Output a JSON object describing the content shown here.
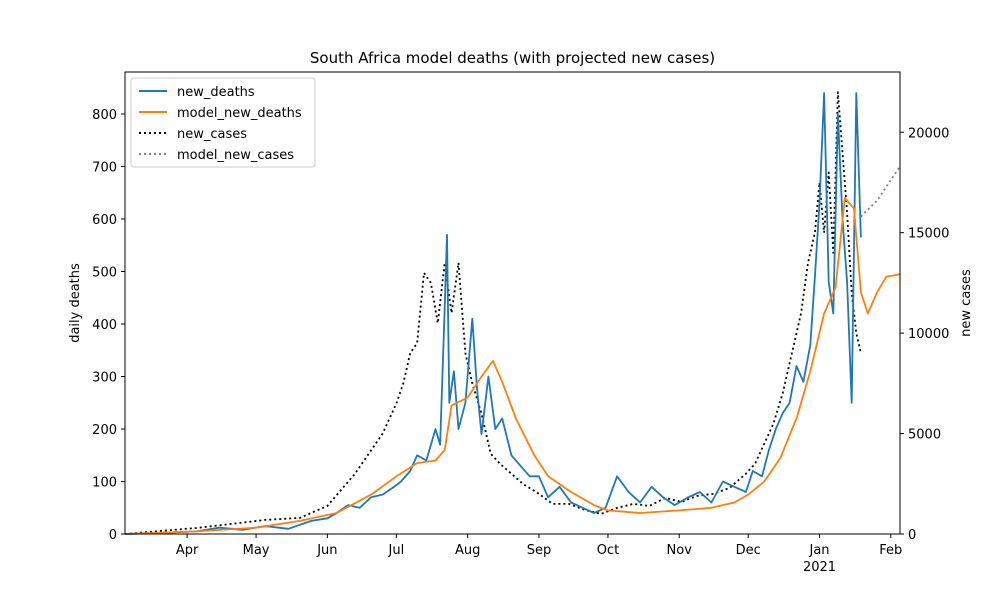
{
  "chart_data": {
    "type": "line",
    "title": "South Africa model deaths (with projected new cases)",
    "ylabel": "daily deaths",
    "y2label": "new cases",
    "xlim": [
      "2020-03-05",
      "2021-02-05"
    ],
    "ylim": [
      0,
      880
    ],
    "y2lim": [
      0,
      23000
    ],
    "x_ticks": [
      {
        "date": "2020-04-01",
        "label": "Apr"
      },
      {
        "date": "2020-05-01",
        "label": "May"
      },
      {
        "date": "2020-06-01",
        "label": "Jun"
      },
      {
        "date": "2020-07-01",
        "label": "Jul"
      },
      {
        "date": "2020-08-01",
        "label": "Aug"
      },
      {
        "date": "2020-09-01",
        "label": "Sep"
      },
      {
        "date": "2020-10-01",
        "label": "Oct"
      },
      {
        "date": "2020-11-01",
        "label": "Nov"
      },
      {
        "date": "2020-12-01",
        "label": "Dec"
      },
      {
        "date": "2021-01-01",
        "label": "Jan",
        "sublabel": "2021"
      },
      {
        "date": "2021-02-01",
        "label": "Feb"
      }
    ],
    "y_ticks": [
      0,
      100,
      200,
      300,
      400,
      500,
      600,
      700,
      800
    ],
    "y2_ticks": [
      0,
      5000,
      10000,
      15000,
      20000
    ],
    "legend_position": "upper-left",
    "series": [
      {
        "name": "new_deaths",
        "axis": "left",
        "color": "#1f77b4",
        "style": "solid",
        "x": [
          "2020-03-05",
          "2020-03-20",
          "2020-04-05",
          "2020-04-15",
          "2020-04-25",
          "2020-05-05",
          "2020-05-15",
          "2020-05-25",
          "2020-06-01",
          "2020-06-05",
          "2020-06-10",
          "2020-06-15",
          "2020-06-20",
          "2020-06-25",
          "2020-06-30",
          "2020-07-03",
          "2020-07-07",
          "2020-07-10",
          "2020-07-14",
          "2020-07-18",
          "2020-07-20",
          "2020-07-22",
          "2020-07-23",
          "2020-07-24",
          "2020-07-26",
          "2020-07-28",
          "2020-07-31",
          "2020-08-03",
          "2020-08-05",
          "2020-08-07",
          "2020-08-10",
          "2020-08-13",
          "2020-08-16",
          "2020-08-20",
          "2020-08-24",
          "2020-08-28",
          "2020-09-01",
          "2020-09-05",
          "2020-09-10",
          "2020-09-15",
          "2020-09-20",
          "2020-09-25",
          "2020-09-30",
          "2020-10-05",
          "2020-10-10",
          "2020-10-15",
          "2020-10-20",
          "2020-10-25",
          "2020-10-30",
          "2020-11-05",
          "2020-11-10",
          "2020-11-15",
          "2020-11-20",
          "2020-11-25",
          "2020-11-30",
          "2020-12-03",
          "2020-12-07",
          "2020-12-10",
          "2020-12-13",
          "2020-12-16",
          "2020-12-19",
          "2020-12-22",
          "2020-12-25",
          "2020-12-28",
          "2020-12-30",
          "2021-01-01",
          "2021-01-03",
          "2021-01-05",
          "2021-01-07",
          "2021-01-09",
          "2021-01-11",
          "2021-01-13",
          "2021-01-15",
          "2021-01-17",
          "2021-01-19"
        ],
        "y": [
          0,
          2,
          5,
          12,
          8,
          15,
          10,
          25,
          30,
          40,
          55,
          50,
          70,
          75,
          90,
          100,
          120,
          150,
          140,
          200,
          170,
          430,
          570,
          250,
          310,
          200,
          250,
          410,
          280,
          190,
          300,
          200,
          220,
          150,
          130,
          110,
          110,
          70,
          90,
          60,
          50,
          40,
          50,
          110,
          80,
          60,
          90,
          70,
          55,
          70,
          80,
          60,
          100,
          90,
          80,
          120,
          110,
          160,
          200,
          230,
          250,
          320,
          290,
          360,
          490,
          630,
          840,
          480,
          420,
          800,
          600,
          480,
          250,
          840,
          565
        ]
      },
      {
        "name": "model_new_deaths",
        "axis": "left",
        "color": "#ff7f0e",
        "style": "solid",
        "x": [
          "2020-03-05",
          "2020-04-05",
          "2020-05-01",
          "2020-05-20",
          "2020-06-05",
          "2020-06-20",
          "2020-07-01",
          "2020-07-10",
          "2020-07-18",
          "2020-07-22",
          "2020-07-25",
          "2020-08-01",
          "2020-08-07",
          "2020-08-12",
          "2020-08-16",
          "2020-08-22",
          "2020-08-30",
          "2020-09-05",
          "2020-09-15",
          "2020-09-25",
          "2020-10-01",
          "2020-10-15",
          "2020-11-01",
          "2020-11-15",
          "2020-11-25",
          "2020-12-01",
          "2020-12-08",
          "2020-12-15",
          "2020-12-22",
          "2020-12-28",
          "2021-01-03",
          "2021-01-08",
          "2021-01-12",
          "2021-01-16",
          "2021-01-19",
          "2021-01-22",
          "2021-01-26",
          "2021-01-30",
          "2021-02-05"
        ],
        "y": [
          0,
          5,
          12,
          25,
          40,
          75,
          110,
          135,
          140,
          160,
          245,
          260,
          300,
          330,
          290,
          220,
          150,
          110,
          80,
          55,
          45,
          40,
          45,
          50,
          60,
          75,
          100,
          145,
          220,
          310,
          420,
          470,
          640,
          620,
          460,
          420,
          460,
          490,
          495
        ]
      },
      {
        "name": "new_cases",
        "axis": "right",
        "color": "#000000",
        "style": "dotted",
        "x": [
          "2020-03-05",
          "2020-03-20",
          "2020-04-05",
          "2020-04-20",
          "2020-05-05",
          "2020-05-20",
          "2020-06-01",
          "2020-06-07",
          "2020-06-13",
          "2020-06-19",
          "2020-06-25",
          "2020-07-01",
          "2020-07-04",
          "2020-07-07",
          "2020-07-10",
          "2020-07-13",
          "2020-07-16",
          "2020-07-19",
          "2020-07-22",
          "2020-07-25",
          "2020-07-28",
          "2020-07-31",
          "2020-08-03",
          "2020-08-07",
          "2020-08-11",
          "2020-08-15",
          "2020-08-20",
          "2020-08-25",
          "2020-09-01",
          "2020-09-07",
          "2020-09-14",
          "2020-09-21",
          "2020-09-28",
          "2020-10-05",
          "2020-10-12",
          "2020-10-19",
          "2020-10-26",
          "2020-11-02",
          "2020-11-09",
          "2020-11-16",
          "2020-11-23",
          "2020-11-30",
          "2020-12-04",
          "2020-12-08",
          "2020-12-12",
          "2020-12-16",
          "2020-12-20",
          "2020-12-24",
          "2020-12-27",
          "2020-12-30",
          "2021-01-01",
          "2021-01-03",
          "2021-01-05",
          "2021-01-07",
          "2021-01-09",
          "2021-01-11",
          "2021-01-13",
          "2021-01-15",
          "2021-01-17",
          "2021-01-19"
        ],
        "y": [
          0,
          150,
          300,
          500,
          700,
          800,
          1400,
          2200,
          3000,
          4000,
          5000,
          6500,
          7500,
          9000,
          9500,
          13000,
          12500,
          10500,
          13500,
          11000,
          13500,
          9000,
          7500,
          6000,
          4000,
          3500,
          3000,
          2500,
          2000,
          1500,
          1500,
          1200,
          1000,
          1300,
          1500,
          1400,
          1800,
          1600,
          1900,
          2000,
          2300,
          3000,
          3500,
          4500,
          5500,
          7000,
          9000,
          11000,
          13500,
          15000,
          17500,
          15000,
          18000,
          14000,
          22000,
          19000,
          16000,
          12000,
          10000,
          9000
        ]
      },
      {
        "name": "model_new_cases",
        "axis": "right",
        "color": "#7f7f7f",
        "style": "dotted",
        "x": [
          "2021-01-19",
          "2021-01-26",
          "2021-02-05"
        ],
        "y": [
          15800,
          16600,
          18300
        ]
      }
    ]
  }
}
